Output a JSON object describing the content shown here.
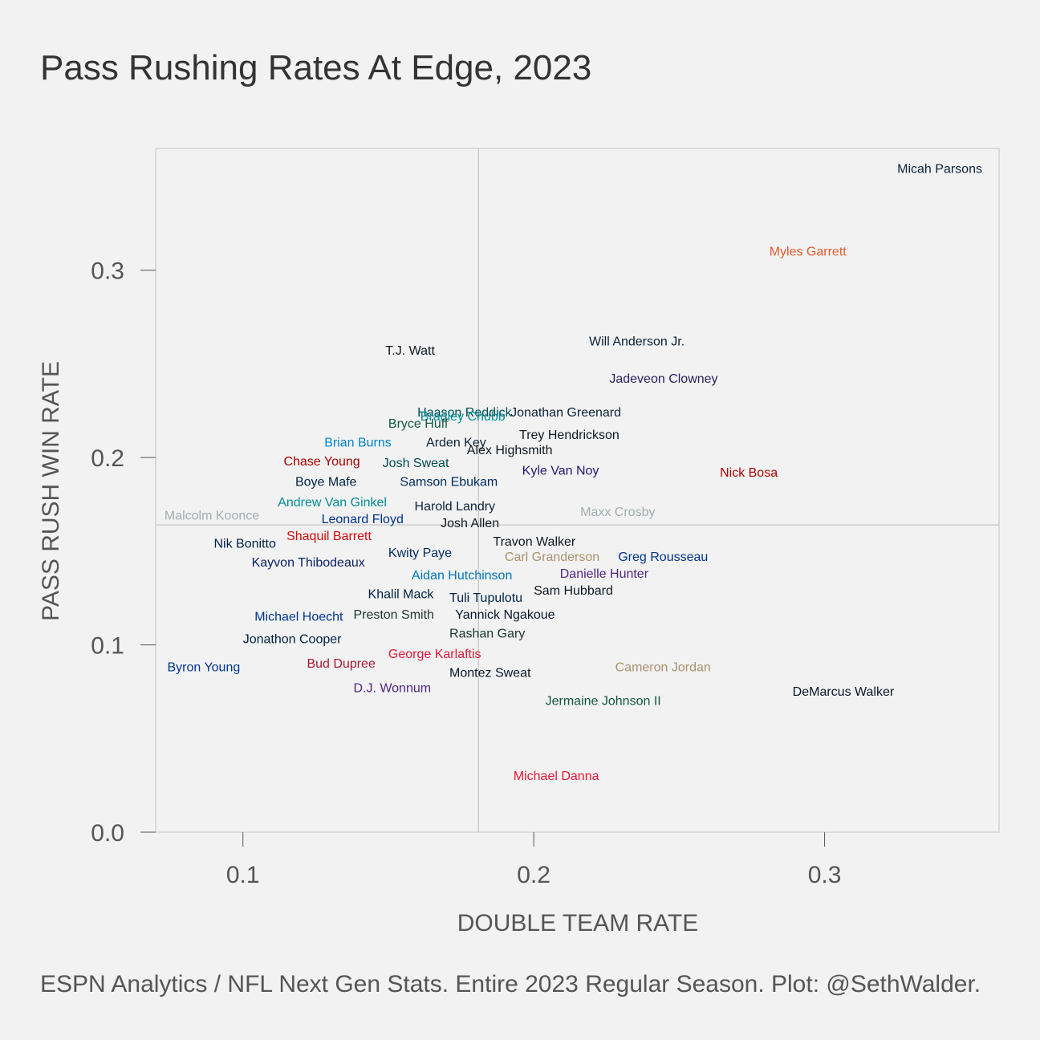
{
  "title": "Pass Rushing Rates At Edge, 2023",
  "caption": "ESPN Analytics / NFL Next Gen Stats. Entire 2023 Regular Season. Plot: @SethWalder.",
  "chart_data": {
    "type": "scatter",
    "title": "Pass Rushing Rates At Edge, 2023",
    "xlabel": "DOUBLE TEAM RATE",
    "ylabel": "PASS RUSH WIN RATE",
    "xlim": [
      0.07,
      0.36
    ],
    "ylim": [
      0.0,
      0.365
    ],
    "x_ticks": [
      0.1,
      0.2,
      0.3
    ],
    "y_ticks": [
      0.0,
      0.1,
      0.2,
      0.3
    ],
    "x_tick_labels": [
      "0.1",
      "0.2",
      "0.3"
    ],
    "y_tick_labels": [
      "0.0",
      "0.1",
      "0.2",
      "0.3"
    ],
    "reference_lines": {
      "x_mean": 0.181,
      "y_mean": 0.164
    },
    "grid": false,
    "points": [
      {
        "label": "Micah Parsons",
        "x": 0.325,
        "y": 0.354,
        "color": "#0b2239"
      },
      {
        "label": "Myles Garrett",
        "x": 0.281,
        "y": 0.31,
        "color": "#e35b2e"
      },
      {
        "label": "Will Anderson Jr.",
        "x": 0.219,
        "y": 0.262,
        "color": "#0b2239"
      },
      {
        "label": "Jadeveon Clowney",
        "x": 0.226,
        "y": 0.242,
        "color": "#2a1e5c"
      },
      {
        "label": "T.J. Watt",
        "x": 0.149,
        "y": 0.257,
        "color": "#101820"
      },
      {
        "label": "Haason Reddick",
        "x": 0.16,
        "y": 0.224,
        "color": "#004c54"
      },
      {
        "label": "Jonathan Greenard",
        "x": 0.192,
        "y": 0.224,
        "color": "#0b2239"
      },
      {
        "label": "Bradley Chubb",
        "x": 0.161,
        "y": 0.222,
        "color": "#008e97"
      },
      {
        "label": "Bryce Huff",
        "x": 0.15,
        "y": 0.218,
        "color": "#125740"
      },
      {
        "label": "Trey Hendrickson",
        "x": 0.195,
        "y": 0.212,
        "color": "#101820"
      },
      {
        "label": "Brian Burns",
        "x": 0.128,
        "y": 0.208,
        "color": "#0085ca"
      },
      {
        "label": "Arden Key",
        "x": 0.163,
        "y": 0.208,
        "color": "#0b2239"
      },
      {
        "label": "Alex Highsmith",
        "x": 0.177,
        "y": 0.204,
        "color": "#101820"
      },
      {
        "label": "Chase Young",
        "x": 0.114,
        "y": 0.198,
        "color": "#aa0000"
      },
      {
        "label": "Josh Sweat",
        "x": 0.148,
        "y": 0.197,
        "color": "#004c54"
      },
      {
        "label": "Kyle Van Noy",
        "x": 0.196,
        "y": 0.193,
        "color": "#241773"
      },
      {
        "label": "Nick Bosa",
        "x": 0.264,
        "y": 0.192,
        "color": "#aa0000"
      },
      {
        "label": "Boye Mafe",
        "x": 0.118,
        "y": 0.187,
        "color": "#002244"
      },
      {
        "label": "Samson Ebukam",
        "x": 0.154,
        "y": 0.187,
        "color": "#002c5f"
      },
      {
        "label": "Malcolm Koonce",
        "x": 0.073,
        "y": 0.169,
        "color": "#a5acaf"
      },
      {
        "label": "Andrew Van Ginkel",
        "x": 0.112,
        "y": 0.176,
        "color": "#008e97"
      },
      {
        "label": "Harold Landry",
        "x": 0.159,
        "y": 0.174,
        "color": "#0c2340"
      },
      {
        "label": "Maxx Crosby",
        "x": 0.216,
        "y": 0.171,
        "color": "#a5acaf"
      },
      {
        "label": "Leonard Floyd",
        "x": 0.127,
        "y": 0.167,
        "color": "#00338d"
      },
      {
        "label": "Josh Allen",
        "x": 0.168,
        "y": 0.165,
        "color": "#101820"
      },
      {
        "label": "Shaquil Barrett",
        "x": 0.115,
        "y": 0.158,
        "color": "#d50a0a"
      },
      {
        "label": "Nik Bonitto",
        "x": 0.09,
        "y": 0.154,
        "color": "#002244"
      },
      {
        "label": "Travon Walker",
        "x": 0.186,
        "y": 0.155,
        "color": "#101820"
      },
      {
        "label": "Kwity Paye",
        "x": 0.15,
        "y": 0.149,
        "color": "#002c5f"
      },
      {
        "label": "Carl Granderson",
        "x": 0.19,
        "y": 0.147,
        "color": "#a8926e"
      },
      {
        "label": "Greg Rousseau",
        "x": 0.229,
        "y": 0.147,
        "color": "#00338d"
      },
      {
        "label": "Kayvon Thibodeaux",
        "x": 0.103,
        "y": 0.144,
        "color": "#0b2265"
      },
      {
        "label": "Danielle Hunter",
        "x": 0.209,
        "y": 0.138,
        "color": "#4f2683"
      },
      {
        "label": "Aidan Hutchinson",
        "x": 0.158,
        "y": 0.137,
        "color": "#0076b6"
      },
      {
        "label": "Sam Hubbard",
        "x": 0.2,
        "y": 0.129,
        "color": "#101820"
      },
      {
        "label": "Khalil Mack",
        "x": 0.143,
        "y": 0.127,
        "color": "#002244"
      },
      {
        "label": "Tuli Tupulotu",
        "x": 0.171,
        "y": 0.125,
        "color": "#002244"
      },
      {
        "label": "Michael Hoecht",
        "x": 0.104,
        "y": 0.115,
        "color": "#003594"
      },
      {
        "label": "Preston Smith",
        "x": 0.138,
        "y": 0.116,
        "color": "#203731"
      },
      {
        "label": "Yannick Ngakoue",
        "x": 0.173,
        "y": 0.116,
        "color": "#0b162a"
      },
      {
        "label": "Rashan Gary",
        "x": 0.171,
        "y": 0.106,
        "color": "#203731"
      },
      {
        "label": "Jonathon Cooper",
        "x": 0.1,
        "y": 0.103,
        "color": "#002244"
      },
      {
        "label": "George Karlaftis",
        "x": 0.15,
        "y": 0.095,
        "color": "#e31837"
      },
      {
        "label": "Bud Dupree",
        "x": 0.122,
        "y": 0.09,
        "color": "#a71930"
      },
      {
        "label": "Byron Young",
        "x": 0.074,
        "y": 0.088,
        "color": "#003594"
      },
      {
        "label": "Cameron Jordan",
        "x": 0.228,
        "y": 0.088,
        "color": "#a8926e"
      },
      {
        "label": "Montez Sweat",
        "x": 0.171,
        "y": 0.085,
        "color": "#0b162a"
      },
      {
        "label": "D.J. Wonnum",
        "x": 0.138,
        "y": 0.077,
        "color": "#4f2683"
      },
      {
        "label": "DeMarcus Walker",
        "x": 0.289,
        "y": 0.075,
        "color": "#0b162a"
      },
      {
        "label": "Jermaine Johnson II",
        "x": 0.204,
        "y": 0.07,
        "color": "#125740"
      },
      {
        "label": "Michael Danna",
        "x": 0.193,
        "y": 0.03,
        "color": "#e31837"
      }
    ]
  }
}
